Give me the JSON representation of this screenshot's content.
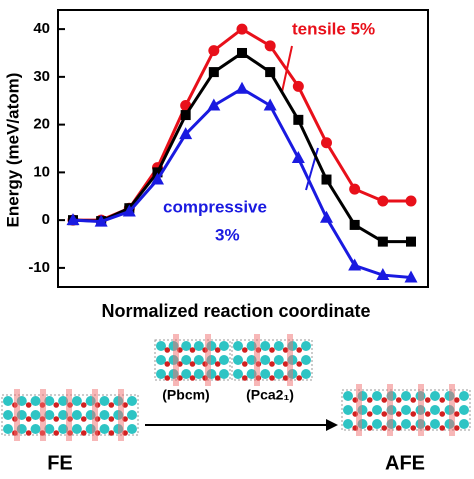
{
  "chart_data": {
    "type": "line",
    "ylabel": "Energy (meV/atom)",
    "xlabel": "Normalized reaction coordinate",
    "ylim": [
      -14,
      44
    ],
    "yticks": [
      -10,
      0,
      10,
      20,
      30,
      40
    ],
    "series": [
      {
        "color": "#e8101a",
        "marker": "circle",
        "values": [
          0,
          0,
          2.5,
          11,
          24,
          35.5,
          40,
          36.5,
          28,
          16.2,
          6.5,
          4,
          4
        ]
      },
      {
        "color": "#000000",
        "marker": "square",
        "values": [
          0,
          -0.2,
          2.5,
          10,
          22,
          31,
          35,
          31,
          21,
          8.5,
          -1,
          -4.5,
          -4.5
        ]
      },
      {
        "color": "#1a1ae0",
        "marker": "triangle",
        "values": [
          0,
          -0.3,
          1.8,
          8.5,
          18,
          24,
          27.5,
          24,
          13,
          0.5,
          -9.5,
          -11.5,
          -12
        ]
      }
    ],
    "annotations": [
      {
        "text": "tensile 5%",
        "color": "#e8101a"
      },
      {
        "text": "compressive",
        "color": "#1a1ae0"
      },
      {
        "text": "3%",
        "color": "#1a1ae0"
      }
    ]
  },
  "diagram": {
    "labels": [
      "(Pbcm)",
      "(Pca2₁)",
      "FE",
      "AFE"
    ]
  }
}
